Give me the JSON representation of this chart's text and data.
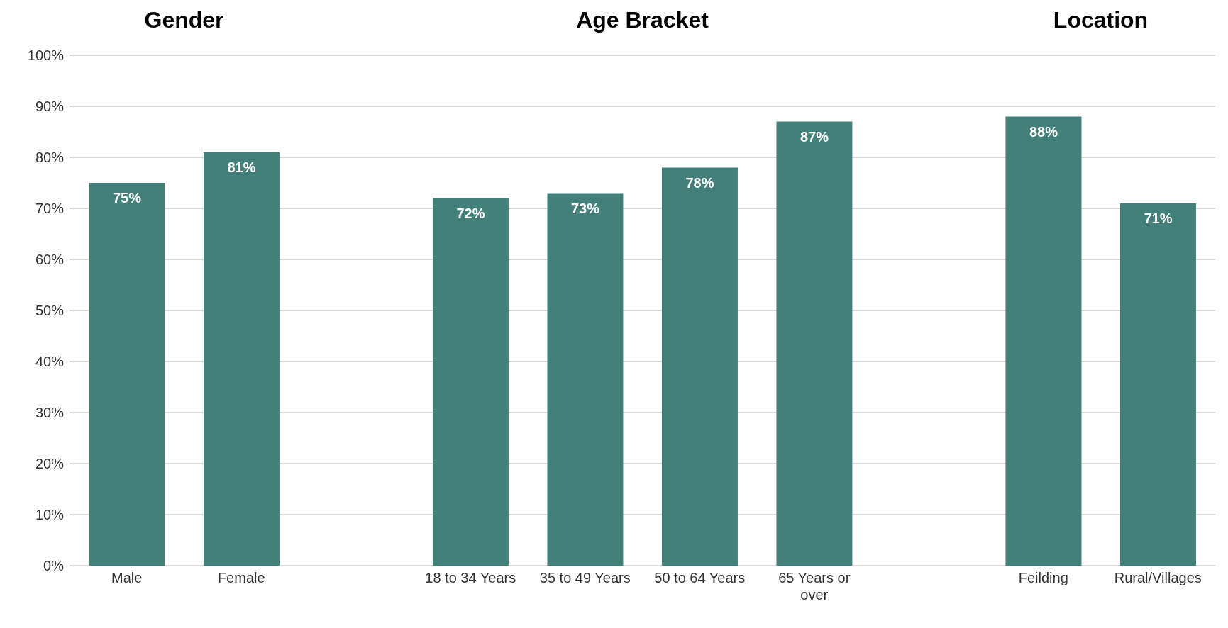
{
  "chart_data": {
    "type": "bar",
    "categories": [
      "Male",
      "Female",
      null,
      "18 to 34 Years",
      "35 to 49 Years",
      "50 to 64 Years",
      "65 Years or over",
      null,
      "Feilding",
      "Rural/Villages"
    ],
    "values": [
      75,
      81,
      null,
      72,
      73,
      78,
      87,
      null,
      88,
      71
    ],
    "color": "#44807a",
    "ylim": [
      0,
      100
    ],
    "yticks": [
      {
        "value": 0,
        "label": "0%"
      },
      {
        "value": 10,
        "label": "10%"
      },
      {
        "value": 20,
        "label": "20%"
      },
      {
        "value": 30,
        "label": "30%"
      },
      {
        "value": 40,
        "label": "40%"
      },
      {
        "value": 50,
        "label": "50%"
      },
      {
        "value": 60,
        "label": "60%"
      },
      {
        "value": 70,
        "label": "70%"
      },
      {
        "value": 80,
        "label": "80%"
      },
      {
        "value": 90,
        "label": "90%"
      },
      {
        "value": 100,
        "label": "100%"
      }
    ],
    "grid": "y",
    "value_labels": [
      "75%",
      "81%",
      null,
      "72%",
      "73%",
      "78%",
      "87%",
      null,
      "88%",
      "71%"
    ],
    "annotations": [
      "Gender",
      "Age Bracket",
      "Location"
    ]
  }
}
